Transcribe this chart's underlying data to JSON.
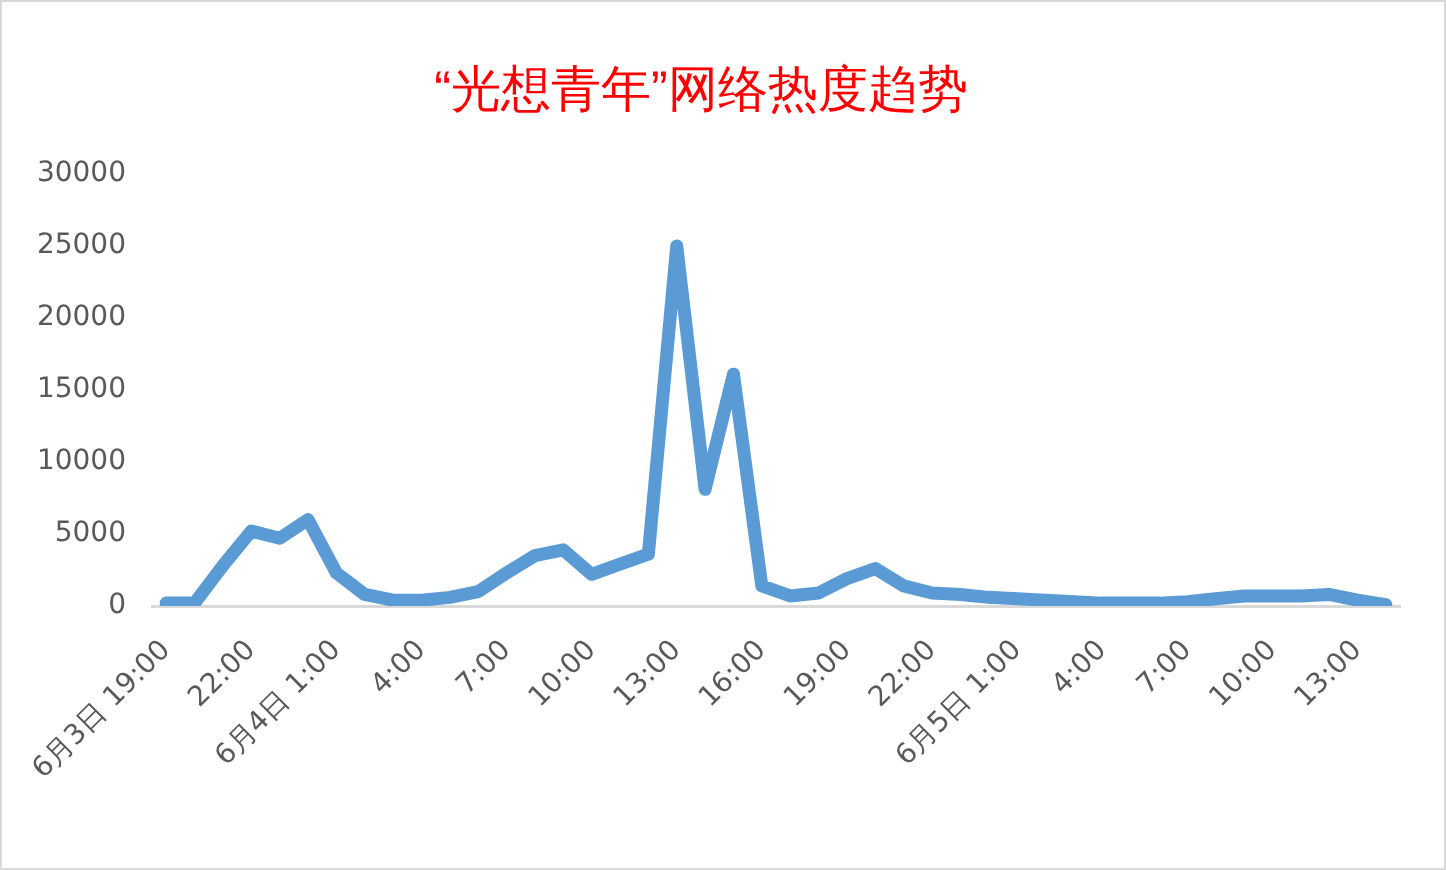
{
  "chart_data": {
    "type": "line",
    "title": "“光想青年”网络热度趋势",
    "categories": [
      "6月3日 19:00",
      null,
      null,
      "22:00",
      null,
      null,
      "6月4日 1:00",
      null,
      null,
      "4:00",
      null,
      null,
      "7:00",
      null,
      null,
      "10:00",
      null,
      null,
      "13:00",
      null,
      null,
      "16:00",
      null,
      null,
      "19:00",
      null,
      null,
      "22:00",
      null,
      null,
      "6月5日 1:00",
      null,
      null,
      "4:00",
      null,
      null,
      "7:00",
      null,
      null,
      "10:00",
      null,
      null,
      "13:00",
      null
    ],
    "values": [
      200,
      200,
      2800,
      5200,
      4700,
      6000,
      2300,
      800,
      400,
      400,
      600,
      1000,
      2300,
      3500,
      3900,
      2200,
      2900,
      3600,
      25000,
      8100,
      16100,
      1400,
      700,
      900,
      1900,
      2600,
      1400,
      900,
      800,
      600,
      500,
      400,
      300,
      200,
      200,
      200,
      300,
      500,
      700,
      700,
      700,
      800,
      400,
      100
    ],
    "color": "#5b9bd5",
    "ylim": [
      0,
      30000
    ],
    "yticks": [
      0,
      5000,
      10000,
      15000,
      20000,
      25000,
      30000
    ]
  }
}
